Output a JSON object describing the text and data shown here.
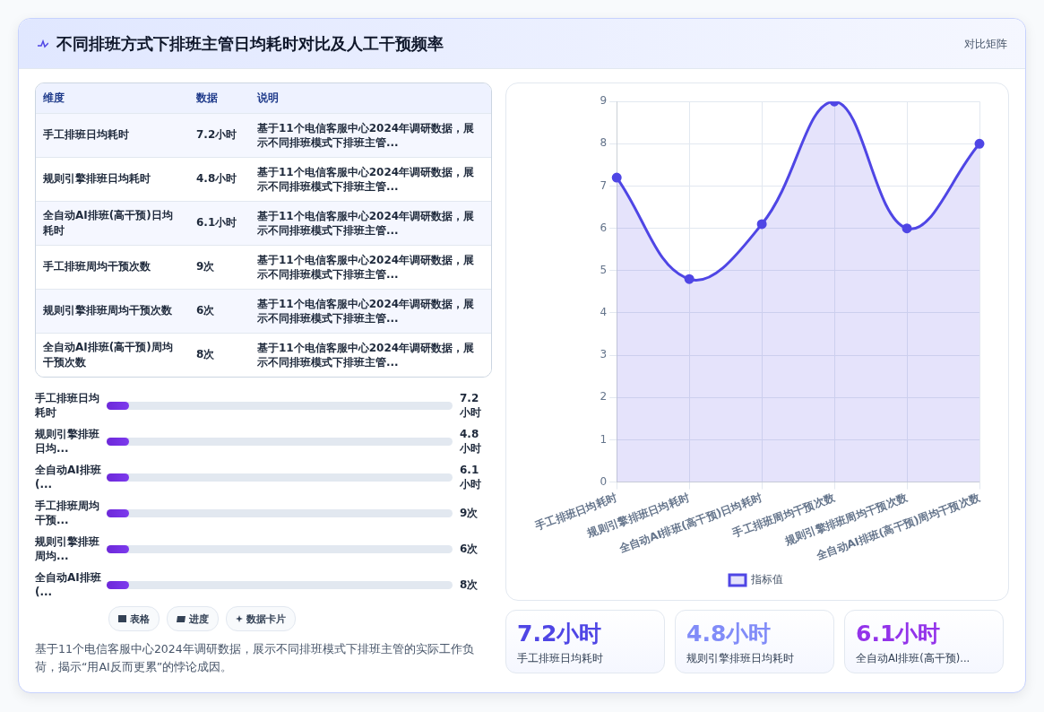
{
  "chart_data": [
    {
      "type": "other",
      "title": "不同排班方式下排班主管日均耗时对比及人工干预频率",
      "annotations": [
        "对比矩阵"
      ]
    },
    {
      "type": "other",
      "categories": [
        "手工排班日均耗时",
        "规则引擎排班日均耗时",
        "全自动AI排班(高干预)日均耗时",
        "手工排班周均干预次数",
        "规则引擎排班周均干预次数",
        "全自动AI排班(高干预)周均干预次数"
      ],
      "value_labels": [
        "7.2小时",
        "4.8小时",
        "6.1小时",
        "9次",
        "6次",
        "8次"
      ],
      "annotations": [
        "维度",
        "数据",
        "说明",
        "基于11个电信客服中心2024年调研数据，展示不同排班模式下排班主管...",
        "基于11个电信客服中心2024年调研数据，展示不同排班模式下排班主管...",
        "基于11个电信客服中心2024年调研数据，展示不同排班模式下排班主管...",
        "基于11个电信客服中心2024年调研数据，展示不同排班模式下排班主管...",
        "基于11个电信客服中心2024年调研数据，展示不同排班模式下排班主管...",
        "基于11个电信客服中心2024年调研数据，展示不同排班模式下排班主管..."
      ]
    },
    {
      "type": "other",
      "categories": [
        "手工排班日均耗时",
        "规则引擎排班日均...",
        "全自动AI排班(...",
        "手工排班周均干预...",
        "规则引擎排班周均...",
        "全自动AI排班(..."
      ],
      "value_labels": [
        "7.2小时",
        "4.8小时",
        "6.1小时",
        "9次",
        "6次",
        "8次"
      ]
    },
    {
      "type": "other",
      "annotations": [
        "表格",
        "进度",
        "数据卡片",
        "基于11个电信客服中心2024年调研数据，展示不同排班模式下排班主管的实际工作负荷，揭示“用AI反而更累”的悖论成因。"
      ]
    },
    {
      "type": "area",
      "categories": [
        "手工排班日均耗时",
        "规则引擎排班日均耗时",
        "全自动AI排班(高干预)日均耗时",
        "手工排班周均干预次数",
        "规则引擎排班周均干预次数",
        "全自动AI排班(高干预)周均干预次数"
      ],
      "series": [
        {
          "name": "指标值",
          "color": "#4f46e5",
          "values": [
            7.2,
            4.8,
            6.1,
            9,
            6,
            8
          ]
        }
      ],
      "ylim": [
        0,
        9
      ],
      "yticks": [
        0,
        1,
        2,
        3,
        4,
        5,
        6,
        7,
        8,
        9
      ],
      "grid": true,
      "legend": "bottom",
      "marker": "circle"
    },
    {
      "type": "other",
      "categories": [
        "7.2小时",
        "4.8小时",
        "6.1小时"
      ],
      "value_labels": [
        "手工排班日均耗时",
        "规则引擎排班日均耗时",
        "全自动AI排班(高干预)..."
      ]
    }
  ]
}
